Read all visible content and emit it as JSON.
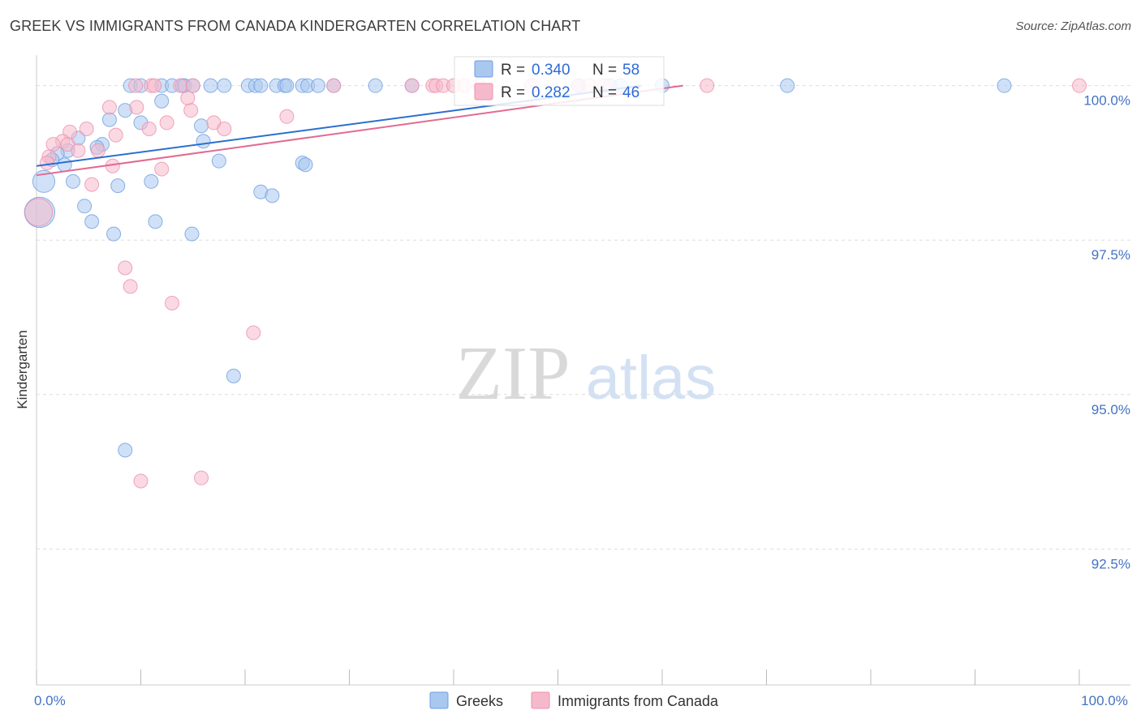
{
  "title": "GREEK VS IMMIGRANTS FROM CANADA KINDERGARTEN CORRELATION CHART",
  "source": "Source: ZipAtlas.com",
  "watermark": {
    "zip": "ZIP",
    "atlas": "atlas"
  },
  "colors": {
    "greeks_fill": "#a9c8f0",
    "greeks_stroke": "#6f9de0",
    "greeks_line": "#2a6fd1",
    "canada_fill": "#f6b9cb",
    "canada_stroke": "#ee8fae",
    "canada_line": "#e26a93",
    "axis_blue": "#4472c4",
    "grid": "#dddddd"
  },
  "legend": {
    "r_label": "R =",
    "n_label": "N =",
    "rows": [
      {
        "series": "Greeks",
        "r": "0.340",
        "n": "58"
      },
      {
        "series": "Immigrants from Canada",
        "r": "0.282",
        "n": "46"
      }
    ]
  },
  "bottom_legend": [
    "Greeks",
    "Immigrants from Canada"
  ],
  "chart_data": {
    "type": "scatter",
    "title": "GREEK VS IMMIGRANTS FROM CANADA KINDERGARTEN CORRELATION CHART",
    "xlabel": "",
    "ylabel": "Kindergarten",
    "xlim": [
      0,
      100
    ],
    "ylim": [
      90.3,
      100.35
    ],
    "y_ticks": [
      {
        "value": 100.0,
        "label": "100.0%"
      },
      {
        "value": 97.5,
        "label": "97.5%"
      },
      {
        "value": 95.0,
        "label": "95.0%"
      },
      {
        "value": 92.5,
        "label": "92.5%"
      }
    ],
    "x_tick_labels": [
      {
        "value": 0,
        "label": "0.0%"
      },
      {
        "value": 100,
        "label": "100.0%"
      }
    ],
    "x_minor_ticks": [
      0,
      10,
      20,
      30,
      40,
      50,
      60,
      70,
      80,
      90,
      100
    ],
    "series": [
      {
        "name": "Greeks",
        "trend": {
          "x0": 0,
          "y0": 98.7,
          "x1": 58,
          "y1": 100.0
        },
        "points": [
          [
            9,
            100.0,
            1
          ],
          [
            10,
            100.0,
            1
          ],
          [
            12,
            100.0,
            1
          ],
          [
            13,
            100.0,
            1
          ],
          [
            14,
            100.0,
            1
          ],
          [
            14.2,
            100.0,
            1
          ],
          [
            15,
            100.0,
            1
          ],
          [
            16.7,
            100.0,
            1
          ],
          [
            18,
            100.0,
            1
          ],
          [
            20.3,
            100.0,
            1
          ],
          [
            21,
            100.0,
            1
          ],
          [
            21.5,
            100.0,
            1
          ],
          [
            23,
            100.0,
            1
          ],
          [
            23.8,
            100.0,
            1
          ],
          [
            24,
            100.0,
            1
          ],
          [
            25.5,
            100.0,
            1
          ],
          [
            26,
            100.0,
            1
          ],
          [
            27,
            100.0,
            1
          ],
          [
            28.5,
            100.0,
            1
          ],
          [
            32.5,
            100.0,
            1
          ],
          [
            36,
            100.0,
            1
          ],
          [
            52,
            100.0,
            1
          ],
          [
            55,
            100.0,
            1
          ],
          [
            56,
            100.0,
            1
          ],
          [
            60,
            100.0,
            1
          ],
          [
            72,
            100.0,
            1
          ],
          [
            92.8,
            100.0,
            1
          ],
          [
            8.5,
            99.6,
            1
          ],
          [
            12,
            99.75,
            1
          ],
          [
            7,
            99.45,
            1
          ],
          [
            10,
            99.4,
            1
          ],
          [
            15.8,
            99.35,
            1
          ],
          [
            4,
            99.15,
            1
          ],
          [
            6.3,
            99.05,
            1
          ],
          [
            3,
            98.95,
            1
          ],
          [
            5.8,
            99.0,
            1
          ],
          [
            2,
            98.9,
            1
          ],
          [
            1.5,
            98.8,
            1
          ],
          [
            16,
            99.1,
            1
          ],
          [
            17.5,
            98.78,
            1
          ],
          [
            25.5,
            98.75,
            1
          ],
          [
            25.8,
            98.72,
            1
          ],
          [
            2.7,
            98.72,
            1
          ],
          [
            0.7,
            98.45,
            1.6
          ],
          [
            3.5,
            98.45,
            1
          ],
          [
            7.8,
            98.38,
            1
          ],
          [
            11,
            98.45,
            1
          ],
          [
            21.5,
            98.28,
            1
          ],
          [
            22.6,
            98.22,
            1
          ],
          [
            4.6,
            98.05,
            1
          ],
          [
            5.3,
            97.8,
            1
          ],
          [
            11.4,
            97.8,
            1
          ],
          [
            7.4,
            97.6,
            1
          ],
          [
            14.9,
            97.6,
            1
          ],
          [
            18.9,
            95.3,
            1
          ],
          [
            8.5,
            94.1,
            1
          ],
          [
            0.3,
            97.95,
            2.2
          ]
        ]
      },
      {
        "name": "Immigrants from Canada",
        "trend": {
          "x0": 0,
          "y0": 98.55,
          "x1": 62,
          "y1": 100.0
        },
        "points": [
          [
            9.5,
            100.0,
            1
          ],
          [
            11,
            100.0,
            1
          ],
          [
            11.3,
            100.0,
            1
          ],
          [
            13.8,
            100.0,
            1
          ],
          [
            15,
            100.0,
            1
          ],
          [
            28.5,
            100.0,
            1
          ],
          [
            36,
            100.0,
            1
          ],
          [
            38,
            100.0,
            1
          ],
          [
            38.3,
            100.0,
            1
          ],
          [
            39,
            100.0,
            1
          ],
          [
            40,
            100.0,
            1
          ],
          [
            41,
            100.0,
            1
          ],
          [
            42.5,
            100.0,
            1
          ],
          [
            47.5,
            100.0,
            1
          ],
          [
            52,
            100.0,
            1
          ],
          [
            53,
            100.0,
            1
          ],
          [
            54.5,
            100.0,
            1
          ],
          [
            64.3,
            100.0,
            1
          ],
          [
            100,
            100.0,
            1
          ],
          [
            7,
            99.65,
            1
          ],
          [
            9.6,
            99.65,
            1
          ],
          [
            14.8,
            99.6,
            1
          ],
          [
            14.5,
            99.8,
            1
          ],
          [
            17,
            99.4,
            1
          ],
          [
            12.5,
            99.4,
            1
          ],
          [
            24,
            99.5,
            1
          ],
          [
            3.2,
            99.25,
            1
          ],
          [
            10.8,
            99.3,
            1
          ],
          [
            7.6,
            99.2,
            1
          ],
          [
            18,
            99.3,
            1
          ],
          [
            4.8,
            99.3,
            1
          ],
          [
            2.5,
            99.1,
            1
          ],
          [
            3,
            99.05,
            1
          ],
          [
            1.6,
            99.05,
            1
          ],
          [
            4,
            98.95,
            1
          ],
          [
            5.9,
            98.95,
            1
          ],
          [
            1.2,
            98.85,
            1
          ],
          [
            1,
            98.75,
            1
          ],
          [
            7.3,
            98.7,
            1
          ],
          [
            12,
            98.65,
            1
          ],
          [
            5.3,
            98.4,
            1
          ],
          [
            8.5,
            97.05,
            1
          ],
          [
            9,
            96.75,
            1
          ],
          [
            13,
            96.48,
            1
          ],
          [
            20.8,
            96.0,
            1
          ],
          [
            10,
            93.6,
            1
          ],
          [
            15.8,
            93.65,
            1
          ],
          [
            0.2,
            97.95,
            2
          ]
        ]
      }
    ]
  }
}
